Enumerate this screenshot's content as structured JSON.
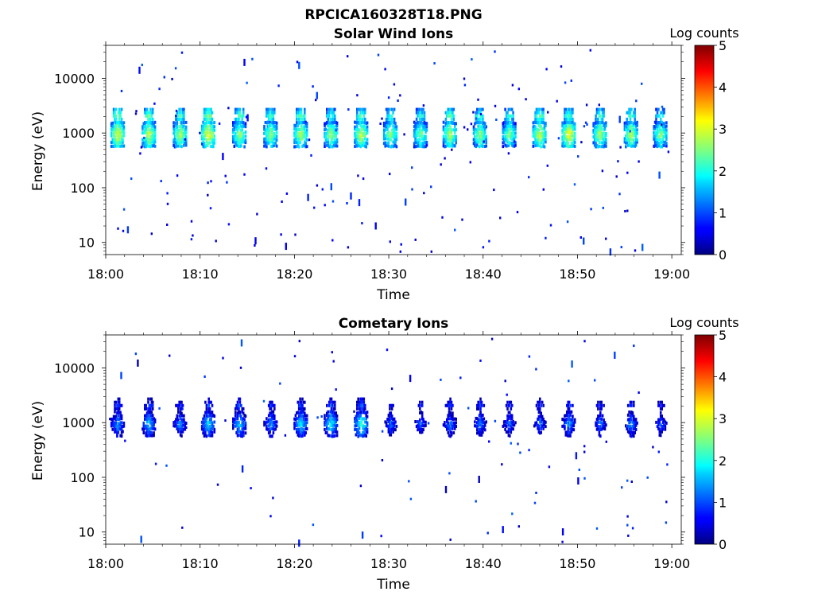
{
  "figure_title": "RPCICA160328T18.PNG",
  "colorbar_label": "Log counts",
  "colorbar_ticks": [
    "0",
    "1",
    "2",
    "3",
    "4",
    "5"
  ],
  "chart_data": [
    {
      "type": "heatmap",
      "title": "Solar Wind Ions",
      "xlabel": "Time",
      "ylabel": "Energy (eV)",
      "x_ticks": [
        "18:00",
        "18:10",
        "18:20",
        "18:30",
        "18:40",
        "18:50",
        "19:00"
      ],
      "y_ticks": [
        "10",
        "100",
        "1000",
        "10000"
      ],
      "y_scale": "log",
      "ylim": [
        6,
        40000
      ],
      "xlim_minutes": [
        0,
        61
      ],
      "colorbar_range": [
        0,
        5
      ],
      "bursts": [
        {
          "t": 1.2,
          "main": 3.3,
          "upper": 2.8
        },
        {
          "t": 4.5,
          "main": 3.2,
          "upper": 2.7
        },
        {
          "t": 7.8,
          "main": 3.1,
          "upper": 2.5
        },
        {
          "t": 10.8,
          "main": 3.4,
          "upper": 2.8
        },
        {
          "t": 14.1,
          "main": 3.0,
          "upper": 2.6
        },
        {
          "t": 17.4,
          "main": 3.0,
          "upper": 2.5
        },
        {
          "t": 20.6,
          "main": 3.1,
          "upper": 2.6
        },
        {
          "t": 23.8,
          "main": 3.0,
          "upper": 2.4
        },
        {
          "t": 27.0,
          "main": 3.2,
          "upper": 2.6
        },
        {
          "t": 30.1,
          "main": 3.0,
          "upper": 2.4
        },
        {
          "t": 33.3,
          "main": 2.9,
          "upper": 2.3
        },
        {
          "t": 36.4,
          "main": 3.1,
          "upper": 2.6
        },
        {
          "t": 39.6,
          "main": 3.0,
          "upper": 2.5
        },
        {
          "t": 42.7,
          "main": 2.9,
          "upper": 2.4
        },
        {
          "t": 45.9,
          "main": 3.2,
          "upper": 2.6
        },
        {
          "t": 49.0,
          "main": 3.4,
          "upper": 2.5
        },
        {
          "t": 52.3,
          "main": 3.1,
          "upper": 2.4
        },
        {
          "t": 55.6,
          "main": 3.1,
          "upper": 2.5
        },
        {
          "t": 58.7,
          "main": 2.9,
          "upper": 2.3
        }
      ]
    },
    {
      "type": "heatmap",
      "title": "Cometary Ions",
      "xlabel": "Time",
      "ylabel": "Energy (eV)",
      "x_ticks": [
        "18:00",
        "18:10",
        "18:20",
        "18:30",
        "18:40",
        "18:50",
        "19:00"
      ],
      "y_ticks": [
        "10",
        "100",
        "1000",
        "10000"
      ],
      "y_scale": "log",
      "ylim": [
        6,
        40000
      ],
      "xlim_minutes": [
        0,
        61
      ],
      "colorbar_range": [
        0,
        5
      ],
      "bursts": [
        {
          "t": 1.2,
          "main": 1.8,
          "upper": 1.2
        },
        {
          "t": 4.5,
          "main": 2.0,
          "upper": 1.3
        },
        {
          "t": 7.8,
          "main": 1.7,
          "upper": 1.1
        },
        {
          "t": 10.8,
          "main": 2.1,
          "upper": 1.2
        },
        {
          "t": 14.1,
          "main": 2.0,
          "upper": 1.3
        },
        {
          "t": 17.4,
          "main": 1.7,
          "upper": 1.1
        },
        {
          "t": 20.6,
          "main": 2.1,
          "upper": 1.2
        },
        {
          "t": 23.8,
          "main": 2.2,
          "upper": 1.3
        },
        {
          "t": 27.0,
          "main": 2.4,
          "upper": 1.4
        },
        {
          "t": 30.1,
          "main": 1.5,
          "upper": 0.9
        },
        {
          "t": 33.3,
          "main": 1.4,
          "upper": 1.0
        },
        {
          "t": 36.4,
          "main": 1.6,
          "upper": 1.1
        },
        {
          "t": 39.6,
          "main": 1.6,
          "upper": 1.1
        },
        {
          "t": 42.7,
          "main": 1.5,
          "upper": 1.0
        },
        {
          "t": 45.9,
          "main": 1.5,
          "upper": 1.1
        },
        {
          "t": 49.0,
          "main": 1.8,
          "upper": 1.1
        },
        {
          "t": 52.3,
          "main": 1.5,
          "upper": 1.0
        },
        {
          "t": 55.6,
          "main": 1.7,
          "upper": 1.1
        },
        {
          "t": 58.7,
          "main": 1.4,
          "upper": 1.0
        }
      ]
    }
  ]
}
